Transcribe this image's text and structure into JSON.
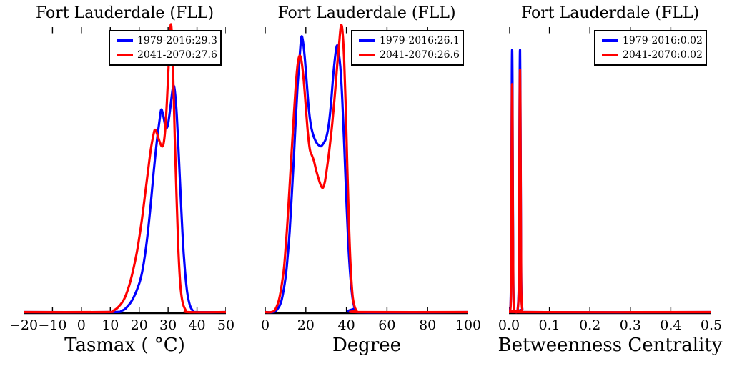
{
  "figure": {
    "background": "#ffffff",
    "axis_color": "#000000",
    "accent_blue": "#0000ff",
    "accent_red": "#ff0000"
  },
  "chart_data": [
    {
      "type": "line",
      "kind": "kde-density",
      "title": "Fort Lauderdale (FLL)",
      "xlabel": "Tasmax ( °C)",
      "xlim": [
        -20,
        50
      ],
      "ylim_note": "y is relative density, 0 = baseline, 1 = top of axes; no y ticks shown",
      "grid": false,
      "legend_position": "upper-right",
      "xtick_values": [
        -20,
        -10,
        0,
        10,
        20,
        30,
        40,
        50
      ],
      "xtick_labels": [
        "−20",
        "−10",
        "0",
        "10",
        "20",
        "30",
        "40",
        "50"
      ],
      "series": [
        {
          "name": "1979-2016",
          "legend_label": "1979-2016:29.3",
          "mean": 29.3,
          "color": "#0000ff",
          "points": [
            [
              -20,
              0
            ],
            [
              10,
              0
            ],
            [
              14,
              0.005
            ],
            [
              16,
              0.02
            ],
            [
              18,
              0.05
            ],
            [
              20,
              0.1
            ],
            [
              21,
              0.14
            ],
            [
              22,
              0.2
            ],
            [
              23,
              0.28
            ],
            [
              24,
              0.38
            ],
            [
              25,
              0.49
            ],
            [
              26,
              0.59
            ],
            [
              27,
              0.67
            ],
            [
              27.6,
              0.71
            ],
            [
              28.2,
              0.695
            ],
            [
              29,
              0.655
            ],
            [
              29.4,
              0.645
            ],
            [
              30,
              0.66
            ],
            [
              30.8,
              0.72
            ],
            [
              31.4,
              0.77
            ],
            [
              31.9,
              0.795
            ],
            [
              32.4,
              0.77
            ],
            [
              33,
              0.69
            ],
            [
              33.6,
              0.57
            ],
            [
              34.2,
              0.44
            ],
            [
              35,
              0.27
            ],
            [
              35.8,
              0.15
            ],
            [
              36.6,
              0.07
            ],
            [
              37.5,
              0.025
            ],
            [
              38.5,
              0.005
            ],
            [
              39.5,
              0
            ],
            [
              50,
              0
            ]
          ]
        },
        {
          "name": "2041-2070",
          "legend_label": "2041-2070:27.6",
          "mean": 27.6,
          "color": "#ff0000",
          "points": [
            [
              -20,
              0
            ],
            [
              8,
              0
            ],
            [
              11,
              0.005
            ],
            [
              13,
              0.02
            ],
            [
              15,
              0.05
            ],
            [
              17,
              0.11
            ],
            [
              19,
              0.2
            ],
            [
              20,
              0.26
            ],
            [
              21,
              0.33
            ],
            [
              22,
              0.41
            ],
            [
              23,
              0.49
            ],
            [
              24,
              0.57
            ],
            [
              25,
              0.625
            ],
            [
              25.5,
              0.64
            ],
            [
              26.2,
              0.625
            ],
            [
              27,
              0.6
            ],
            [
              27.8,
              0.582
            ],
            [
              28.4,
              0.59
            ],
            [
              29,
              0.64
            ],
            [
              29.6,
              0.74
            ],
            [
              30.2,
              0.87
            ],
            [
              30.7,
              0.98
            ],
            [
              31,
              1.01
            ],
            [
              31.3,
              0.97
            ],
            [
              31.8,
              0.82
            ],
            [
              32.3,
              0.62
            ],
            [
              32.9,
              0.41
            ],
            [
              33.5,
              0.23
            ],
            [
              34.2,
              0.1
            ],
            [
              35,
              0.035
            ],
            [
              36,
              0.008
            ],
            [
              37,
              0
            ],
            [
              50,
              0
            ]
          ]
        }
      ]
    },
    {
      "type": "line",
      "kind": "kde-density",
      "title": "Fort Lauderdale (FLL)",
      "xlabel": "Degree",
      "xlim": [
        0,
        100
      ],
      "grid": false,
      "legend_position": "upper-right",
      "xtick_values": [
        0,
        20,
        40,
        60,
        80,
        100
      ],
      "xtick_labels": [
        "0",
        "20",
        "40",
        "60",
        "80",
        "100"
      ],
      "series": [
        {
          "name": "1979-2016",
          "legend_label": "1979-2016:26.1",
          "mean": 26.1,
          "color": "#0000ff",
          "points": [
            [
              0,
              0
            ],
            [
              4,
              0
            ],
            [
              6,
              0.01
            ],
            [
              8,
              0.04
            ],
            [
              10,
              0.12
            ],
            [
              11,
              0.19
            ],
            [
              12,
              0.28
            ],
            [
              13,
              0.4
            ],
            [
              14,
              0.53
            ],
            [
              15,
              0.67
            ],
            [
              16,
              0.8
            ],
            [
              17,
              0.9
            ],
            [
              17.8,
              0.965
            ],
            [
              18.6,
              0.95
            ],
            [
              19.5,
              0.89
            ],
            [
              20.5,
              0.8
            ],
            [
              21.5,
              0.71
            ],
            [
              22.5,
              0.655
            ],
            [
              23.5,
              0.625
            ],
            [
              24.5,
              0.605
            ],
            [
              25.5,
              0.592
            ],
            [
              26.5,
              0.585
            ],
            [
              27.5,
              0.582
            ],
            [
              28.5,
              0.59
            ],
            [
              29.5,
              0.602
            ],
            [
              30.5,
              0.625
            ],
            [
              31.5,
              0.67
            ],
            [
              32.5,
              0.74
            ],
            [
              33.5,
              0.83
            ],
            [
              34.5,
              0.9
            ],
            [
              35.3,
              0.935
            ],
            [
              36,
              0.92
            ],
            [
              37,
              0.86
            ],
            [
              38,
              0.74
            ],
            [
              39,
              0.57
            ],
            [
              40,
              0.39
            ],
            [
              41,
              0.23
            ],
            [
              42,
              0.12
            ],
            [
              43,
              0.05
            ],
            [
              44,
              0.015
            ],
            [
              45,
              0
            ],
            [
              100,
              0
            ]
          ]
        },
        {
          "name": "2041-2070",
          "legend_label": "2041-2070:26.6",
          "mean": 26.6,
          "color": "#ff0000",
          "points": [
            [
              0,
              0
            ],
            [
              3,
              0
            ],
            [
              5,
              0.01
            ],
            [
              7,
              0.05
            ],
            [
              9,
              0.14
            ],
            [
              10,
              0.22
            ],
            [
              11,
              0.32
            ],
            [
              12,
              0.44
            ],
            [
              13,
              0.56
            ],
            [
              14,
              0.68
            ],
            [
              15,
              0.79
            ],
            [
              16,
              0.87
            ],
            [
              17,
              0.9
            ],
            [
              18,
              0.875
            ],
            [
              19,
              0.81
            ],
            [
              20,
              0.72
            ],
            [
              21,
              0.63
            ],
            [
              22,
              0.57
            ],
            [
              23,
              0.55
            ],
            [
              24,
              0.53
            ],
            [
              25,
              0.5
            ],
            [
              26,
              0.475
            ],
            [
              27,
              0.452
            ],
            [
              28,
              0.437
            ],
            [
              28.7,
              0.44
            ],
            [
              29.5,
              0.462
            ],
            [
              30.5,
              0.51
            ],
            [
              31.5,
              0.565
            ],
            [
              33,
              0.66
            ],
            [
              34.5,
              0.78
            ],
            [
              35.5,
              0.87
            ],
            [
              36.5,
              0.95
            ],
            [
              37.3,
              1.005
            ],
            [
              38,
              0.99
            ],
            [
              38.8,
              0.9
            ],
            [
              39.6,
              0.73
            ],
            [
              40.4,
              0.52
            ],
            [
              41.2,
              0.32
            ],
            [
              42,
              0.17
            ],
            [
              43,
              0.06
            ],
            [
              44,
              0.02
            ],
            [
              45,
              0.005
            ],
            [
              46,
              0
            ],
            [
              100,
              0
            ]
          ]
        }
      ]
    },
    {
      "type": "line",
      "kind": "kde-density",
      "title": "Fort Lauderdale (FLL)",
      "xlabel": "Betweenness Centrality",
      "xlim": [
        0,
        0.5
      ],
      "grid": false,
      "legend_position": "upper-right",
      "xtick_values": [
        0.0,
        0.1,
        0.2,
        0.3,
        0.4,
        0.5
      ],
      "xtick_labels": [
        "0.0",
        "0.1",
        "0.2",
        "0.3",
        "0.4",
        "0.5"
      ],
      "series": [
        {
          "name": "1979-2016",
          "legend_label": "1979-2016:0.02",
          "mean": 0.02,
          "color": "#0000ff",
          "points": [
            [
              0,
              0
            ],
            [
              0.002,
              0.003
            ],
            [
              0.004,
              0.03
            ],
            [
              0.005,
              0.12
            ],
            [
              0.006,
              0.42
            ],
            [
              0.007,
              0.8
            ],
            [
              0.0078,
              0.92
            ],
            [
              0.0086,
              0.8
            ],
            [
              0.0096,
              0.42
            ],
            [
              0.0106,
              0.12
            ],
            [
              0.0116,
              0.03
            ],
            [
              0.0136,
              0.003
            ],
            [
              0.016,
              0
            ],
            [
              0.0195,
              0
            ],
            [
              0.0215,
              0.01
            ],
            [
              0.0235,
              0.05
            ],
            [
              0.0245,
              0.14
            ],
            [
              0.0255,
              0.44
            ],
            [
              0.0265,
              0.8
            ],
            [
              0.0273,
              0.92
            ],
            [
              0.0281,
              0.8
            ],
            [
              0.0291,
              0.44
            ],
            [
              0.0301,
              0.14
            ],
            [
              0.0311,
              0.05
            ],
            [
              0.0331,
              0.01
            ],
            [
              0.036,
              0
            ],
            [
              0.5,
              0
            ]
          ]
        },
        {
          "name": "2041-2070",
          "legend_label": "2041-2070:0.02",
          "mean": 0.02,
          "color": "#ff0000",
          "points": [
            [
              0,
              0
            ],
            [
              0.002,
              0.002
            ],
            [
              0.004,
              0.02
            ],
            [
              0.005,
              0.1
            ],
            [
              0.006,
              0.36
            ],
            [
              0.007,
              0.69
            ],
            [
              0.0078,
              0.8
            ],
            [
              0.0086,
              0.69
            ],
            [
              0.0096,
              0.36
            ],
            [
              0.0106,
              0.1
            ],
            [
              0.0116,
              0.02
            ],
            [
              0.0136,
              0.002
            ],
            [
              0.016,
              0
            ],
            [
              0.0195,
              0
            ],
            [
              0.0215,
              0.008
            ],
            [
              0.0235,
              0.04
            ],
            [
              0.0245,
              0.12
            ],
            [
              0.0255,
              0.4
            ],
            [
              0.0265,
              0.74
            ],
            [
              0.0273,
              0.85
            ],
            [
              0.0281,
              0.74
            ],
            [
              0.0291,
              0.4
            ],
            [
              0.0301,
              0.12
            ],
            [
              0.0311,
              0.04
            ],
            [
              0.0331,
              0.008
            ],
            [
              0.036,
              0
            ],
            [
              0.5,
              0
            ]
          ]
        }
      ]
    }
  ]
}
